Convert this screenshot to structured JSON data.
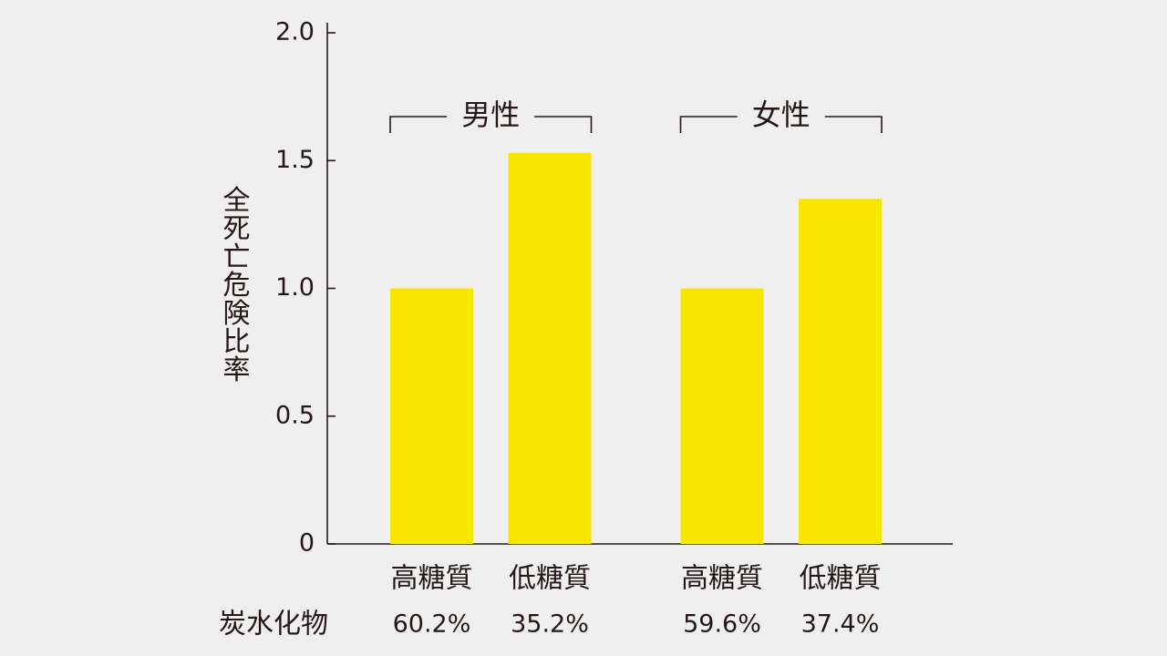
{
  "chart_data": {
    "type": "bar",
    "ylabel": "全死亡危険比率",
    "groups": [
      "男性",
      "女性"
    ],
    "categories": [
      "高糖質",
      "低糖質",
      "高糖質",
      "低糖質"
    ],
    "values": [
      1.0,
      1.53,
      1.0,
      1.35
    ],
    "color": "#f7e600",
    "ylim": [
      0,
      2
    ],
    "yticks": [
      0,
      0.5,
      {
        "value": 1,
        "label": "1.0"
      },
      1.5,
      {
        "value": 2,
        "label": "2.0"
      }
    ],
    "row_label": "炭水化物",
    "row_values": [
      "60.2%",
      "35.2%",
      "59.6%",
      "37.4%"
    ]
  }
}
